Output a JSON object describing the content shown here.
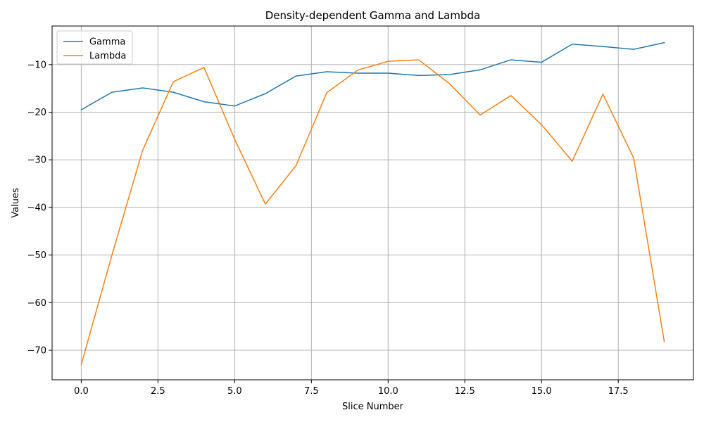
{
  "chart_data": {
    "type": "line",
    "title": "Density-dependent Gamma and Lambda",
    "xlabel": "Slice Number",
    "ylabel": "Values",
    "xlim": [
      -0.95,
      19.95
    ],
    "ylim": [
      -76.2,
      -1.9
    ],
    "xticks": [
      0,
      2.5,
      5,
      7.5,
      10,
      12.5,
      15,
      17.5
    ],
    "xtick_labels": [
      "0.0",
      "2.5",
      "5.0",
      "7.5",
      "10.0",
      "12.5",
      "15.0",
      "17.5"
    ],
    "yticks": [
      -70,
      -60,
      -50,
      -40,
      -30,
      -20,
      -10
    ],
    "ytick_labels": [
      "−70",
      "−60",
      "−50",
      "−40",
      "−30",
      "−20",
      "−10"
    ],
    "grid": true,
    "legend_position": "upper-left",
    "x": [
      0,
      1,
      2,
      3,
      4,
      5,
      6,
      7,
      8,
      9,
      10,
      11,
      12,
      13,
      14,
      15,
      16,
      17,
      18,
      19
    ],
    "series": [
      {
        "name": "Gamma",
        "color": "#1f77b4",
        "values": [
          -19.5,
          -15.8,
          -14.9,
          -15.8,
          -17.8,
          -18.7,
          -16.1,
          -12.4,
          -11.5,
          -11.8,
          -11.8,
          -12.3,
          -12.1,
          -11.1,
          -9.0,
          -9.5,
          -5.7,
          -6.2,
          -6.8,
          -5.4
        ]
      },
      {
        "name": "Lambda",
        "color": "#ff7f0e",
        "values": [
          -73.0,
          -50.0,
          -28.0,
          -13.6,
          -10.6,
          -25.7,
          -39.3,
          -31.2,
          -15.9,
          -11.2,
          -9.3,
          -9.0,
          -14.0,
          -20.6,
          -16.5,
          -22.6,
          -30.3,
          -16.2,
          -29.6,
          -68.2
        ]
      }
    ]
  }
}
